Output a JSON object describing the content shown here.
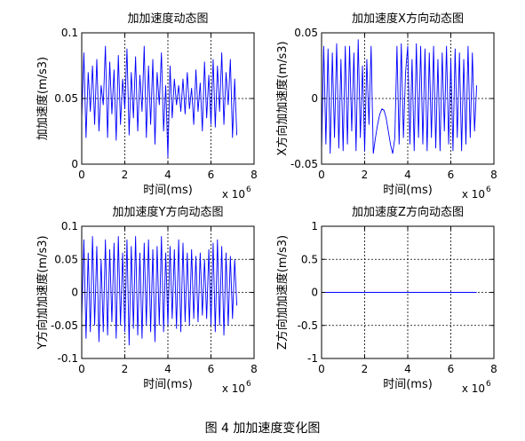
{
  "figure_caption": "图 4 加加速度变化图",
  "chart_data": [
    {
      "type": "line",
      "title": "加加速度动态图",
      "xlabel": "时间(ms)",
      "ylabel": "加加速度(m/s3)",
      "x_exponent_label": "x 10",
      "x_exponent": "6",
      "xlim": [
        0,
        8
      ],
      "ylim": [
        0,
        0.1
      ],
      "xticks": [
        0,
        2,
        4,
        6,
        8
      ],
      "xtick_labels": [
        "0",
        "2",
        "4",
        "6",
        "8"
      ],
      "yticks": [
        0,
        0.05,
        0.1
      ],
      "ytick_labels": [
        "0",
        "0.05",
        "0.1"
      ],
      "grid": true,
      "color": "#0000ff",
      "series": [
        {
          "x": [
            0.0,
            0.1,
            0.2,
            0.3,
            0.4,
            0.5,
            0.6,
            0.7,
            0.8,
            0.9,
            1.0,
            1.1,
            1.2,
            1.3,
            1.4,
            1.5,
            1.6,
            1.7,
            1.8,
            1.9,
            2.0,
            2.1,
            2.2,
            2.3,
            2.4,
            2.5,
            2.6,
            2.7,
            2.8,
            2.9,
            3.0,
            3.1,
            3.2,
            3.3,
            3.4,
            3.5,
            3.6,
            3.7,
            3.8,
            3.9,
            4.0,
            4.1,
            4.2,
            4.3,
            4.4,
            4.5,
            4.6,
            4.7,
            4.8,
            4.9,
            5.0,
            5.1,
            5.2,
            5.3,
            5.4,
            5.5,
            5.6,
            5.7,
            5.8,
            5.9,
            6.0,
            6.1,
            6.2,
            6.3,
            6.4,
            6.5,
            6.6,
            6.7,
            6.8,
            6.9,
            7.0,
            7.1,
            7.2
          ],
          "y": [
            0.035,
            0.085,
            0.02,
            0.07,
            0.04,
            0.075,
            0.03,
            0.08,
            0.025,
            0.06,
            0.045,
            0.09,
            0.02,
            0.078,
            0.038,
            0.072,
            0.018,
            0.083,
            0.03,
            0.065,
            0.042,
            0.088,
            0.022,
            0.07,
            0.035,
            0.082,
            0.025,
            0.068,
            0.04,
            0.09,
            0.02,
            0.075,
            0.03,
            0.08,
            0.015,
            0.07,
            0.045,
            0.085,
            0.025,
            0.06,
            0.005,
            0.075,
            0.035,
            0.065,
            0.045,
            0.06,
            0.04,
            0.065,
            0.038,
            0.07,
            0.042,
            0.058,
            0.03,
            0.072,
            0.04,
            0.062,
            0.025,
            0.078,
            0.035,
            0.068,
            0.03,
            0.08,
            0.028,
            0.075,
            0.04,
            0.085,
            0.03,
            0.07,
            0.045,
            0.08,
            0.02,
            0.065,
            0.022
          ]
        }
      ]
    },
    {
      "type": "line",
      "title": "加加速度X方向动态图",
      "xlabel": "时间(ms)",
      "ylabel": "X方向加加速度(m/s3)",
      "x_exponent_label": "x 10",
      "x_exponent": "6",
      "xlim": [
        0,
        8
      ],
      "ylim": [
        -0.05,
        0.05
      ],
      "xticks": [
        0,
        2,
        4,
        6,
        8
      ],
      "xtick_labels": [
        "0",
        "2",
        "4",
        "6",
        "8"
      ],
      "yticks": [
        -0.05,
        0,
        0.05
      ],
      "ytick_labels": [
        "-0.05",
        "0",
        "0.05"
      ],
      "grid": true,
      "color": "#0000ff",
      "series": [
        {
          "x": [
            0.0,
            0.1,
            0.2,
            0.3,
            0.4,
            0.5,
            0.6,
            0.7,
            0.8,
            0.9,
            1.0,
            1.1,
            1.2,
            1.3,
            1.4,
            1.5,
            1.6,
            1.7,
            1.8,
            1.9,
            2.0,
            2.1,
            2.2,
            2.3,
            2.4,
            2.5,
            2.6,
            2.7,
            2.8,
            2.9,
            3.0,
            3.1,
            3.2,
            3.3,
            3.4,
            3.5,
            3.6,
            3.7,
            3.8,
            3.9,
            4.0,
            4.1,
            4.2,
            4.3,
            4.4,
            4.5,
            4.6,
            4.7,
            4.8,
            4.9,
            5.0,
            5.1,
            5.2,
            5.3,
            5.4,
            5.5,
            5.6,
            5.7,
            5.8,
            5.9,
            6.0,
            6.1,
            6.2,
            6.3,
            6.4,
            6.5,
            6.6,
            6.7,
            6.8,
            6.9,
            7.0,
            7.1,
            7.2
          ],
          "y": [
            -0.04,
            0.04,
            -0.035,
            0.038,
            -0.042,
            0.035,
            -0.03,
            0.042,
            -0.038,
            0.03,
            -0.04,
            0.04,
            -0.035,
            0.04,
            -0.025,
            0.035,
            -0.04,
            0.045,
            -0.03,
            0.025,
            -0.04,
            0.03,
            -0.02,
            0.04,
            -0.042,
            -0.03,
            -0.02,
            -0.012,
            -0.008,
            -0.009,
            -0.015,
            -0.025,
            -0.035,
            -0.042,
            -0.03,
            0.04,
            -0.035,
            0.042,
            -0.03,
            0.02,
            0.04,
            -0.035,
            0.03,
            -0.04,
            0.042,
            -0.03,
            0.04,
            -0.035,
            0.038,
            -0.04,
            0.035,
            -0.03,
            0.04,
            -0.038,
            0.03,
            -0.04,
            0.035,
            -0.025,
            0.04,
            -0.035,
            0.03,
            -0.04,
            0.038,
            -0.03,
            0.035,
            -0.04,
            0.03,
            -0.035,
            0.04,
            -0.03,
            0.035,
            -0.025,
            0.01
          ]
        }
      ]
    },
    {
      "type": "line",
      "title": "加加速度Y方向动态图",
      "xlabel": "时间(ms)",
      "ylabel": "Y方向加加速度(m/s3)",
      "x_exponent_label": "x 10",
      "x_exponent": "6",
      "xlim": [
        0,
        8
      ],
      "ylim": [
        -0.1,
        0.1
      ],
      "xticks": [
        0,
        2,
        4,
        6,
        8
      ],
      "xtick_labels": [
        "0",
        "2",
        "4",
        "6",
        "8"
      ],
      "yticks": [
        -0.1,
        -0.05,
        0,
        0.05,
        0.1
      ],
      "ytick_labels": [
        "-0.1",
        "-0.05",
        "0",
        "0.05",
        "0.1"
      ],
      "grid": true,
      "color": "#0000ff",
      "series": [
        {
          "x": [
            0.0,
            0.1,
            0.2,
            0.3,
            0.4,
            0.5,
            0.6,
            0.7,
            0.8,
            0.9,
            1.0,
            1.1,
            1.2,
            1.3,
            1.4,
            1.5,
            1.6,
            1.7,
            1.8,
            1.9,
            2.0,
            2.1,
            2.2,
            2.3,
            2.4,
            2.5,
            2.6,
            2.7,
            2.8,
            2.9,
            3.0,
            3.1,
            3.2,
            3.3,
            3.4,
            3.5,
            3.6,
            3.7,
            3.8,
            3.9,
            4.0,
            4.1,
            4.2,
            4.3,
            4.4,
            4.5,
            4.6,
            4.7,
            4.8,
            4.9,
            5.0,
            5.1,
            5.2,
            5.3,
            5.4,
            5.5,
            5.6,
            5.7,
            5.8,
            5.9,
            6.0,
            6.1,
            6.2,
            6.3,
            6.4,
            6.5,
            6.6,
            6.7,
            6.8,
            6.9,
            7.0,
            7.1,
            7.2
          ],
          "y": [
            -0.04,
            0.08,
            -0.07,
            0.06,
            -0.06,
            0.085,
            -0.05,
            0.07,
            -0.075,
            0.05,
            -0.06,
            0.08,
            -0.065,
            0.065,
            -0.045,
            0.075,
            -0.07,
            0.085,
            -0.05,
            0.06,
            -0.06,
            0.08,
            -0.08,
            0.07,
            -0.055,
            0.085,
            -0.065,
            0.06,
            -0.07,
            0.075,
            -0.05,
            0.08,
            -0.06,
            0.065,
            -0.075,
            0.07,
            -0.05,
            0.085,
            -0.06,
            0.06,
            -0.05,
            0.07,
            -0.04,
            0.065,
            -0.055,
            0.08,
            -0.06,
            0.075,
            -0.045,
            0.06,
            -0.05,
            0.065,
            -0.04,
            0.055,
            -0.045,
            0.06,
            -0.035,
            0.05,
            -0.04,
            0.065,
            -0.05,
            0.075,
            -0.06,
            0.08,
            -0.05,
            0.07,
            -0.065,
            0.06,
            -0.05,
            0.055,
            -0.04,
            0.05,
            -0.02
          ]
        }
      ]
    },
    {
      "type": "line",
      "title": "加加速度Z方向动态图",
      "xlabel": "时间(ms)",
      "ylabel": "Z方向加加速度(m/s3)",
      "x_exponent_label": "x 10",
      "x_exponent": "6",
      "xlim": [
        0,
        8
      ],
      "ylim": [
        -1,
        1
      ],
      "xticks": [
        0,
        2,
        4,
        6,
        8
      ],
      "xtick_labels": [
        "0",
        "2",
        "4",
        "6",
        "8"
      ],
      "yticks": [
        -1,
        -0.5,
        0,
        0.5,
        1
      ],
      "ytick_labels": [
        "-1",
        "-0.5",
        "0",
        "0.5",
        "1"
      ],
      "grid": true,
      "color": "#0000ff",
      "series": [
        {
          "x": [
            0,
            7.2
          ],
          "y": [
            0,
            0
          ]
        }
      ]
    }
  ]
}
